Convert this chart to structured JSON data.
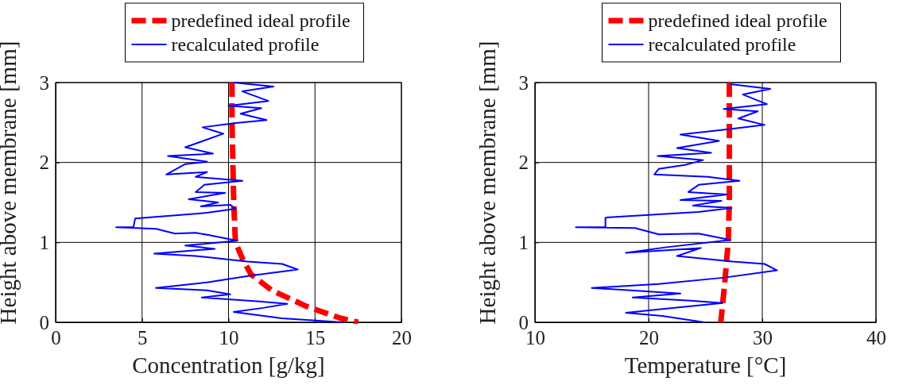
{
  "chart_data": [
    {
      "type": "line",
      "xlabel": "Concentration [g/kg]",
      "ylabel": "Height above membrane [mm]",
      "xlim": [
        0,
        20
      ],
      "xticks": [
        0,
        5,
        10,
        15,
        20
      ],
      "ylim": [
        0,
        3
      ],
      "yticks": [
        0,
        1,
        2,
        3
      ],
      "grid": true,
      "legend": "top",
      "marker": "none",
      "series": [
        {
          "name": "predefined ideal profile",
          "color": "#ff0000",
          "line_style": "dashed",
          "x": [
            10.2,
            10.2,
            10.25,
            10.3,
            10.4,
            10.8,
            11.3,
            12.5,
            14.5,
            16.5,
            17.5
          ],
          "values": [
            3,
            2.5,
            2,
            1.5,
            1,
            0.8,
            0.6,
            0.4,
            0.2,
            0.05,
            0
          ]
        },
        {
          "name": "recalculated profile",
          "color": "#0000ff",
          "line_style": "solid",
          "x": [
            10.3,
            12.6,
            10.8,
            12.3,
            10.0,
            11.9,
            10.7,
            12.2,
            10.3,
            8.5,
            9.7,
            7.5,
            9.1,
            6.5,
            8.76,
            7.5,
            6.4,
            8.76,
            8.1,
            10.8,
            8.6,
            8.1,
            9.8,
            7.7,
            9.4,
            8.4,
            10.1,
            10.4,
            8.75,
            4.6,
            4.5,
            3.5,
            5.8,
            6.9,
            8.1,
            8.9,
            10.5,
            7.5,
            9.2,
            5.7,
            8.1,
            11.1,
            13.1,
            14.0,
            11.2,
            8.75,
            5.8,
            8.75,
            10.1,
            8.45,
            11.8,
            13.4,
            12.0,
            10.3,
            13.1,
            16.6
          ],
          "values": [
            3.0,
            2.95,
            2.89,
            2.77,
            2.71,
            2.68,
            2.61,
            2.53,
            2.49,
            2.44,
            2.36,
            2.19,
            2.11,
            2.08,
            2.01,
            1.98,
            1.85,
            1.88,
            1.82,
            1.77,
            1.72,
            1.63,
            1.62,
            1.54,
            1.5,
            1.45,
            1.47,
            1.42,
            1.37,
            1.3,
            1.19,
            1.19,
            1.17,
            1.11,
            1.12,
            1.09,
            1.02,
            0.96,
            0.92,
            0.86,
            0.83,
            0.76,
            0.73,
            0.66,
            0.58,
            0.5,
            0.43,
            0.4,
            0.35,
            0.31,
            0.26,
            0.23,
            0.18,
            0.13,
            0.05,
            0.0
          ]
        }
      ]
    },
    {
      "type": "line",
      "xlabel": "Temperature [°C]",
      "ylabel": "Height above membrane [mm]",
      "xlim": [
        10,
        40
      ],
      "xticks": [
        10,
        20,
        30,
        40
      ],
      "ylim": [
        0,
        3
      ],
      "yticks": [
        0,
        1,
        2,
        3
      ],
      "grid": true,
      "legend": "top",
      "marker": "none",
      "series": [
        {
          "name": "predefined ideal profile",
          "color": "#ff0000",
          "line_style": "dashed",
          "x": [
            27.1,
            27.1,
            27.1,
            27.1,
            27.0,
            26.7,
            26.5,
            26.35
          ],
          "values": [
            3,
            2.5,
            2,
            1.5,
            1,
            0.5,
            0.21,
            0
          ]
        },
        {
          "name": "recalculated profile",
          "color": "#0000ff",
          "line_style": "solid",
          "x": [
            27.2,
            30.7,
            28.3,
            30.4,
            26.6,
            29.6,
            27.9,
            30.2,
            27.2,
            22.8,
            26.2,
            22.5,
            25.5,
            20.8,
            24.8,
            23.2,
            20.9,
            20.5,
            25.2,
            28.0,
            24.4,
            23.5,
            26.9,
            22.8,
            26.4,
            23.9,
            27.3,
            24.4,
            16.2,
            16.2,
            13.6,
            18.8,
            20.9,
            24.4,
            27.2,
            21.6,
            18.0,
            24.6,
            22.5,
            27.4,
            30.2,
            31.3,
            26.7,
            20.9,
            15.0,
            22.8,
            18.6,
            23.7,
            26.5,
            22.1,
            18.0,
            21.2,
            24.9
          ],
          "values": [
            2.98,
            2.92,
            2.85,
            2.73,
            2.67,
            2.64,
            2.55,
            2.47,
            2.42,
            2.35,
            2.27,
            2.18,
            2.12,
            2.08,
            2.03,
            1.97,
            1.92,
            1.85,
            1.82,
            1.77,
            1.72,
            1.63,
            1.6,
            1.53,
            1.52,
            1.46,
            1.43,
            1.38,
            1.31,
            1.19,
            1.19,
            1.18,
            1.1,
            1.11,
            1.03,
            0.94,
            0.87,
            0.93,
            0.83,
            0.76,
            0.73,
            0.65,
            0.56,
            0.48,
            0.43,
            0.36,
            0.31,
            0.27,
            0.24,
            0.18,
            0.12,
            0.08,
            0.0
          ]
        }
      ]
    }
  ]
}
